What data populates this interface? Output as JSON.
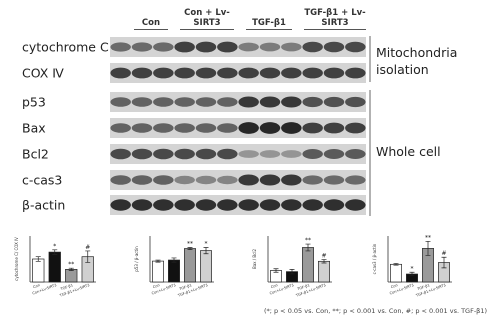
{
  "groups": [
    "Con",
    "Con + Lv-SIRT3",
    "TGF-β1",
    "TGF-β1 + Lv-SIRT3"
  ],
  "blot_labels": [
    "cytochrome C",
    "COX Ⅳ",
    "p53",
    "Bax",
    "Bcl2",
    "c-cas3",
    "β-actin"
  ],
  "section_labels": [
    "Mitochondria isolation",
    "Whole cell"
  ],
  "footnote": "(*; p < 0.05 vs. Con, **; p < 0.001 vs. Con, #; p < 0.001 vs. TGF-β1)",
  "chart_data": [
    {
      "type": "bar",
      "y_label": "cytochrome C/ COX Ⅳ",
      "categories": [
        "Con",
        "Con+Lv-SIRT3",
        "TGF-β1",
        "TGF-β1+Lv-SIRT3"
      ],
      "values": [
        1.0,
        1.3,
        0.55,
        1.1
      ],
      "errors": [
        0.1,
        0.1,
        0.05,
        0.25
      ],
      "annotations": [
        null,
        "*",
        "**",
        "#"
      ],
      "colors": [
        "#ffffff",
        "#111111",
        "#9a9a9a",
        "#d0d0d0"
      ],
      "ylim": [
        0,
        2
      ]
    },
    {
      "type": "bar",
      "y_label": "p53 / β-actin",
      "categories": [
        "Con",
        "Con+Lv-SIRT3",
        "TGF-β1",
        "TGF-β1+Lv-SIRT3"
      ],
      "values": [
        1.0,
        1.05,
        1.6,
        1.5
      ],
      "errors": [
        0.05,
        0.1,
        0.05,
        0.15
      ],
      "annotations": [
        null,
        null,
        "**",
        "*"
      ],
      "colors": [
        "#ffffff",
        "#111111",
        "#9a9a9a",
        "#d0d0d0"
      ],
      "ylim": [
        0,
        2.2
      ]
    },
    {
      "type": "bar",
      "y_label": "Bax / Bcl2",
      "categories": [
        "Con",
        "Con+Lv-SIRT3",
        "TGF-β1",
        "TGF-β1+Lv-SIRT3"
      ],
      "values": [
        1.0,
        0.9,
        3.0,
        1.8
      ],
      "errors": [
        0.15,
        0.2,
        0.3,
        0.15
      ],
      "annotations": [
        null,
        null,
        "**",
        "#"
      ],
      "colors": [
        "#ffffff",
        "#111111",
        "#9a9a9a",
        "#d0d0d0"
      ],
      "ylim": [
        0,
        4
      ]
    },
    {
      "type": "bar",
      "y_label": "c-cas3 / β-actin",
      "categories": [
        "Con",
        "Con+Lv-SIRT3",
        "TGF-β1",
        "TGF-β1+Lv-SIRT3"
      ],
      "values": [
        1.0,
        0.45,
        1.9,
        1.1
      ],
      "errors": [
        0.05,
        0.1,
        0.4,
        0.3
      ],
      "annotations": [
        null,
        "*",
        "**",
        "#"
      ],
      "colors": [
        "#ffffff",
        "#111111",
        "#9a9a9a",
        "#d0d0d0"
      ],
      "ylim": [
        0,
        2.6
      ]
    }
  ]
}
